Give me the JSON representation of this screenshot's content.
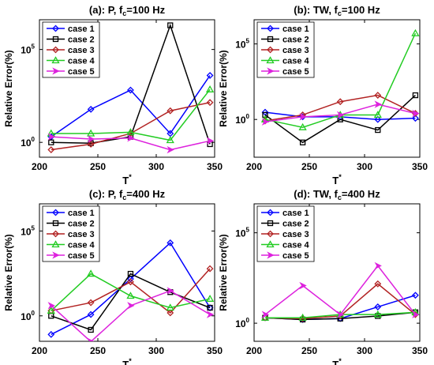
{
  "chart_data": [
    {
      "type": "line",
      "title_parts": [
        "(a): P, f",
        "c",
        "=100 Hz"
      ],
      "xlabel": "T",
      "xlabel_sup": "*",
      "ylabel": "Relative Error(%)",
      "xlim": [
        200,
        350
      ],
      "ylim_log10": [
        -0.8,
        6.6
      ],
      "yscale": "log",
      "xticks": [
        "200",
        "250",
        "300",
        "350"
      ],
      "yticks": [
        {
          "mantissa": "10",
          "exp": "0",
          "value": 1
        },
        {
          "mantissa": "10",
          "exp": "5",
          "value": 100000
        }
      ],
      "legend": "top-left",
      "grid": false,
      "x": [
        210,
        244,
        278,
        312,
        346
      ],
      "series": [
        {
          "name": "case 1",
          "color": "#0000ff",
          "marker": "diamond",
          "values": [
            2.0,
            60,
            650,
            3.0,
            4000
          ]
        },
        {
          "name": "case 2",
          "color": "#000000",
          "marker": "square",
          "values": [
            1.0,
            0.9,
            2.0,
            2000000,
            0.8
          ]
        },
        {
          "name": "case 3",
          "color": "#b22222",
          "marker": "diamond",
          "values": [
            0.4,
            0.8,
            3.0,
            50,
            140
          ]
        },
        {
          "name": "case 4",
          "color": "#22cc22",
          "marker": "triangle",
          "values": [
            3.0,
            3.0,
            3.5,
            1.3,
            700
          ]
        },
        {
          "name": "case 5",
          "color": "#dd22dd",
          "marker": "arrow",
          "values": [
            2.0,
            1.5,
            1.7,
            0.4,
            1.2
          ]
        }
      ]
    },
    {
      "type": "line",
      "title_parts": [
        "(b): TW, f",
        "c",
        "=100 Hz"
      ],
      "xlabel": "T",
      "xlabel_sup": "*",
      "ylabel": "Relative Error(%)",
      "xlim": [
        200,
        350
      ],
      "ylim_log10": [
        -2.5,
        6.6
      ],
      "yscale": "log",
      "xticks": [
        "200",
        "250",
        "300",
        "350"
      ],
      "yticks": [
        {
          "mantissa": "10",
          "exp": "0",
          "value": 1
        },
        {
          "mantissa": "10",
          "exp": "5",
          "value": 100000
        }
      ],
      "legend": "top-left",
      "grid": false,
      "x": [
        210,
        244,
        278,
        312,
        346
      ],
      "series": [
        {
          "name": "case 1",
          "color": "#0000ff",
          "marker": "diamond",
          "values": [
            3.0,
            1.5,
            1.5,
            1.0,
            1.2
          ]
        },
        {
          "name": "case 2",
          "color": "#000000",
          "marker": "square",
          "values": [
            2.0,
            0.03,
            1.0,
            0.2,
            40
          ]
        },
        {
          "name": "case 3",
          "color": "#b22222",
          "marker": "diamond",
          "values": [
            0.8,
            2.0,
            15,
            40,
            2.5
          ]
        },
        {
          "name": "case 4",
          "color": "#22cc22",
          "marker": "triangle",
          "values": [
            1.0,
            0.3,
            2.0,
            2.0,
            500000
          ]
        },
        {
          "name": "case 5",
          "color": "#dd22dd",
          "marker": "arrow",
          "values": [
            0.7,
            1.5,
            2.0,
            10,
            2.5
          ]
        }
      ]
    },
    {
      "type": "line",
      "title_parts": [
        "(c): P, f",
        "c",
        "=400 Hz"
      ],
      "xlabel": "T",
      "xlabel_sup": "*",
      "ylabel": "Relative Error(%)",
      "xlim": [
        200,
        350
      ],
      "ylim_log10": [
        -1.5,
        6.6
      ],
      "yscale": "log",
      "xticks": [
        "200",
        "250",
        "300",
        "350"
      ],
      "yticks": [
        {
          "mantissa": "10",
          "exp": "0",
          "value": 1
        },
        {
          "mantissa": "10",
          "exp": "5",
          "value": 100000
        }
      ],
      "legend": "top-left",
      "grid": false,
      "x": [
        210,
        244,
        278,
        312,
        346
      ],
      "series": [
        {
          "name": "case 1",
          "color": "#0000ff",
          "marker": "diamond",
          "values": [
            0.08,
            1.2,
            150,
            20000,
            3.0
          ]
        },
        {
          "name": "case 2",
          "color": "#000000",
          "marker": "square",
          "values": [
            1.0,
            0.15,
            300,
            25,
            3.0
          ]
        },
        {
          "name": "case 3",
          "color": "#b22222",
          "marker": "diamond",
          "values": [
            2.0,
            6.0,
            100,
            1.5,
            600
          ]
        },
        {
          "name": "case 4",
          "color": "#22cc22",
          "marker": "triangle",
          "values": [
            2.0,
            300,
            15,
            3.0,
            10
          ]
        },
        {
          "name": "case 5",
          "color": "#dd22dd",
          "marker": "arrow",
          "values": [
            4.0,
            0.03,
            4.0,
            30,
            1.2
          ]
        }
      ]
    },
    {
      "type": "line",
      "title_parts": [
        "(d): TW, f",
        "c",
        "=400 Hz"
      ],
      "xlabel": "T",
      "xlabel_sup": "*",
      "ylabel": "Relative Error(%)",
      "xlim": [
        200,
        350
      ],
      "ylim_log10": [
        -1.0,
        6.6
      ],
      "yscale": "log",
      "xticks": [
        "200",
        "250",
        "300",
        "350"
      ],
      "yticks": [
        {
          "mantissa": "10",
          "exp": "0",
          "value": 1
        },
        {
          "mantissa": "10",
          "exp": "5",
          "value": 100000
        }
      ],
      "legend": "top-left",
      "grid": false,
      "x": [
        210,
        244,
        278,
        312,
        346
      ],
      "series": [
        {
          "name": "case 1",
          "color": "#0000ff",
          "marker": "diamond",
          "values": [
            2.0,
            1.6,
            1.8,
            8.0,
            35
          ]
        },
        {
          "name": "case 2",
          "color": "#000000",
          "marker": "square",
          "values": [
            2.0,
            1.6,
            1.8,
            2.5,
            4.0
          ]
        },
        {
          "name": "case 3",
          "color": "#b22222",
          "marker": "diamond",
          "values": [
            2.0,
            1.8,
            2.5,
            150,
            3.0
          ]
        },
        {
          "name": "case 4",
          "color": "#22cc22",
          "marker": "triangle",
          "values": [
            2.0,
            2.0,
            3.0,
            3.0,
            4.0
          ]
        },
        {
          "name": "case 5",
          "color": "#dd22dd",
          "marker": "arrow",
          "values": [
            3.0,
            120,
            3.0,
            1500,
            3.0
          ]
        }
      ]
    }
  ]
}
